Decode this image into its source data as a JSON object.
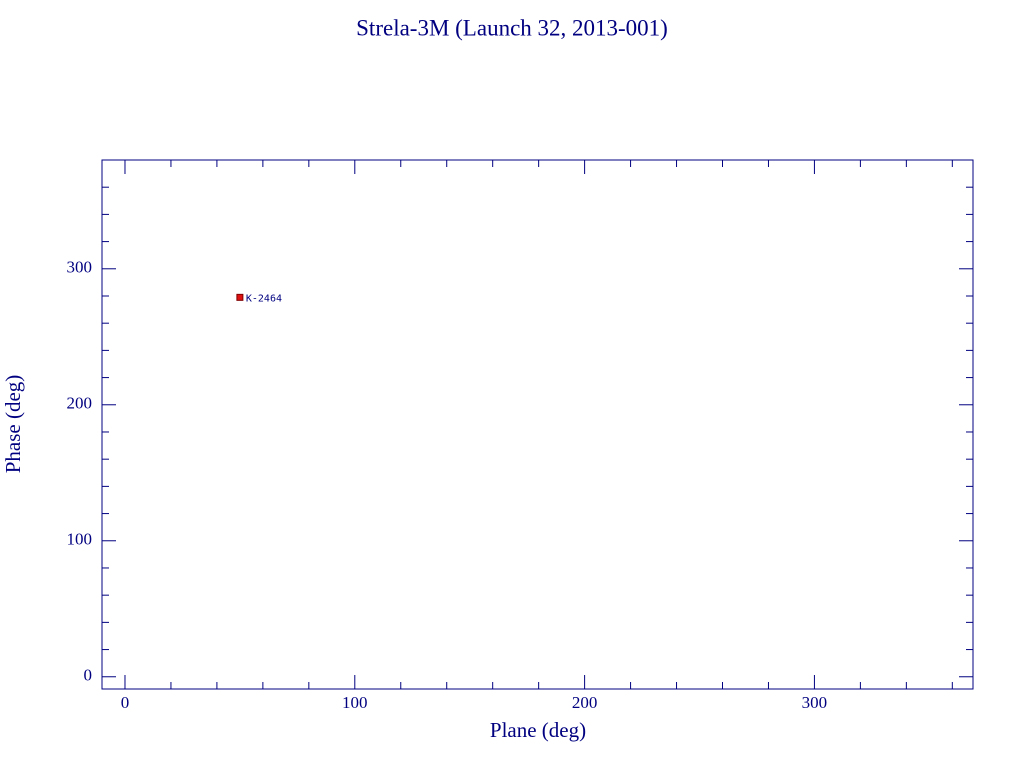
{
  "chart_data": {
    "type": "scatter",
    "title": "Strela-3M (Launch 32, 2013-001)",
    "xlabel": "Plane (deg)",
    "ylabel": "Phase (deg)",
    "x": [
      50
    ],
    "values": [
      279
    ],
    "point_labels": [
      "K-2464"
    ],
    "color": "#dd1111",
    "edge_color": "#800000",
    "xlim": [
      -10,
      369
    ],
    "ylim": [
      -9,
      380
    ],
    "xticks": [
      0,
      100,
      200,
      300
    ],
    "yticks": [
      0,
      100,
      200,
      300
    ],
    "xticks_minor": [
      20,
      40,
      60,
      80,
      120,
      140,
      160,
      180,
      220,
      240,
      260,
      280,
      320,
      340,
      360
    ],
    "yticks_minor": [
      20,
      40,
      60,
      80,
      120,
      140,
      160,
      180,
      220,
      240,
      260,
      280,
      320,
      340,
      360
    ],
    "grid": false
  }
}
